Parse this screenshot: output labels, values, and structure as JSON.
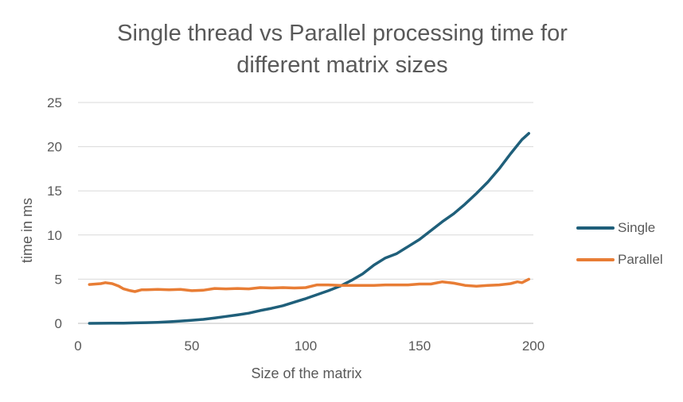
{
  "chart_data": {
    "type": "line",
    "title_line1": "Single thread vs Parallel processing time for",
    "title_line2": "different matrix sizes",
    "xlabel": "Size of the matrix",
    "ylabel": "time in ms",
    "xlim": [
      0,
      200
    ],
    "ylim": [
      0,
      25
    ],
    "xticks": [
      0,
      50,
      100,
      150,
      200
    ],
    "yticks": [
      0,
      5,
      10,
      15,
      20,
      25
    ],
    "grid": true,
    "legend_position": "right",
    "series": [
      {
        "name": "Single",
        "color": "#1f5f7a",
        "x": [
          5,
          10,
          15,
          20,
          25,
          30,
          35,
          40,
          45,
          50,
          55,
          60,
          65,
          70,
          75,
          80,
          85,
          90,
          95,
          100,
          105,
          110,
          115,
          120,
          125,
          130,
          135,
          140,
          145,
          150,
          155,
          160,
          165,
          170,
          175,
          180,
          185,
          190,
          195,
          198
        ],
        "y": [
          0.0,
          0.01,
          0.02,
          0.03,
          0.05,
          0.08,
          0.12,
          0.18,
          0.26,
          0.35,
          0.45,
          0.6,
          0.78,
          0.95,
          1.15,
          1.45,
          1.7,
          2.0,
          2.4,
          2.8,
          3.25,
          3.7,
          4.2,
          4.85,
          5.6,
          6.6,
          7.4,
          7.9,
          8.7,
          9.5,
          10.5,
          11.5,
          12.4,
          13.5,
          14.7,
          16.0,
          17.5,
          19.2,
          20.8,
          21.5
        ]
      },
      {
        "name": "Parallel",
        "color": "#e87d35",
        "x": [
          5,
          10,
          12,
          15,
          18,
          20,
          23,
          25,
          28,
          30,
          35,
          40,
          45,
          50,
          55,
          60,
          65,
          70,
          75,
          80,
          85,
          90,
          95,
          100,
          105,
          110,
          115,
          120,
          125,
          130,
          135,
          140,
          145,
          150,
          155,
          160,
          165,
          170,
          175,
          180,
          185,
          190,
          193,
          195,
          198
        ],
        "y": [
          4.4,
          4.5,
          4.6,
          4.5,
          4.2,
          3.9,
          3.7,
          3.6,
          3.8,
          3.8,
          3.85,
          3.8,
          3.85,
          3.7,
          3.75,
          3.95,
          3.9,
          3.95,
          3.9,
          4.05,
          4.0,
          4.05,
          4.0,
          4.05,
          4.35,
          4.35,
          4.3,
          4.3,
          4.3,
          4.3,
          4.35,
          4.35,
          4.35,
          4.45,
          4.45,
          4.7,
          4.55,
          4.3,
          4.2,
          4.3,
          4.35,
          4.5,
          4.7,
          4.6,
          5.0
        ]
      }
    ]
  }
}
